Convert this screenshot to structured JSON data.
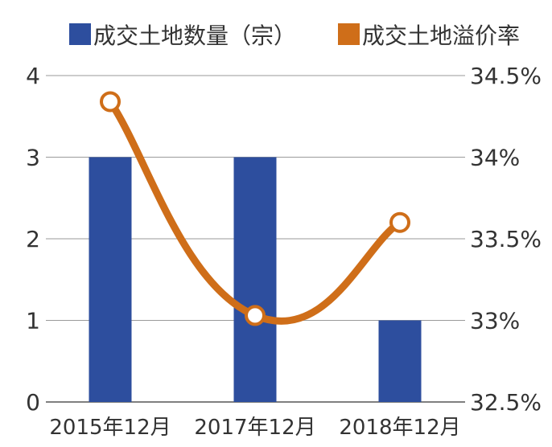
{
  "chart_data": {
    "type": "bar+line",
    "categories": [
      "2015年12月",
      "2017年12月",
      "2018年12月"
    ],
    "series": [
      {
        "name": "成交土地数量（宗）",
        "type": "bar",
        "axis": "left",
        "values": [
          3,
          3,
          1
        ],
        "color": "#2d4e9e"
      },
      {
        "name": "成交土地溢价率",
        "type": "line",
        "axis": "right",
        "values": [
          34.34,
          33.03,
          33.6
        ],
        "unit": "%",
        "color": "#cf6e19"
      }
    ],
    "left_axis": {
      "ylim": [
        0,
        4
      ],
      "ticks": [
        "0",
        "1",
        "2",
        "3",
        "4"
      ]
    },
    "right_axis": {
      "ylim": [
        32.5,
        34.5
      ],
      "ticks": [
        "32.5%",
        "33%",
        "33.5%",
        "34%",
        "34.5%"
      ]
    },
    "grid": true,
    "legend_position": "top"
  }
}
